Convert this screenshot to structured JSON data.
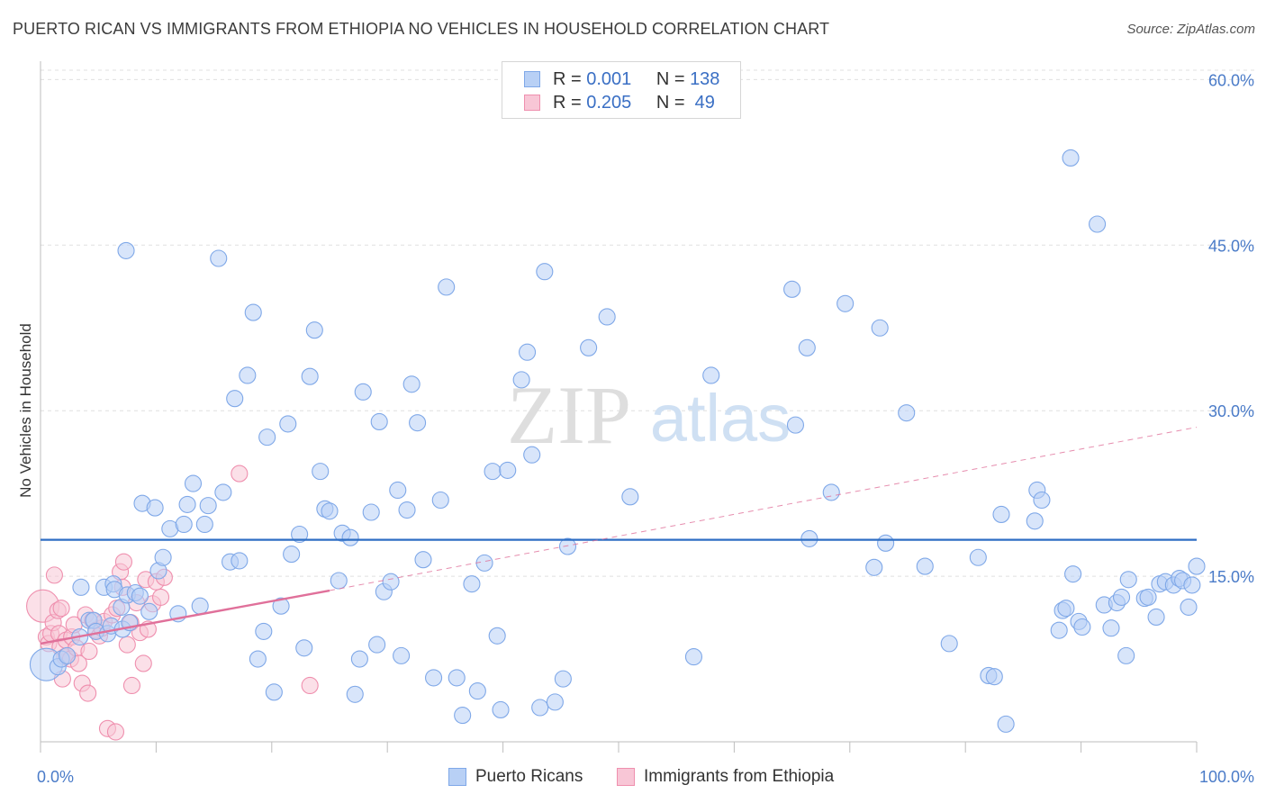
{
  "header": {
    "title": "PUERTO RICAN VS IMMIGRANTS FROM ETHIOPIA NO VEHICLES IN HOUSEHOLD CORRELATION CHART",
    "source": "Source: ZipAtlas.com"
  },
  "watermark": {
    "zip": "ZIP",
    "atlas": "atlas"
  },
  "legend": {
    "rows": [
      {
        "r_label": "R =",
        "r_value": "0.001",
        "n_label": "N =",
        "n_value": "138",
        "color": "#7fa8e8",
        "fill": "#b8d0f5"
      },
      {
        "r_label": "R =",
        "r_value": "0.205",
        "n_label": "N =",
        "n_value": "49",
        "color": "#ef8fae",
        "fill": "#f8c6d6"
      }
    ]
  },
  "bottom_legend": {
    "items": [
      {
        "label": "Puerto Ricans",
        "color": "#7fa8e8",
        "fill": "#b8d0f5"
      },
      {
        "label": "Immigrants from Ethiopia",
        "color": "#ef8fae",
        "fill": "#f8c6d6"
      }
    ]
  },
  "chart_data": {
    "type": "scatter",
    "ylabel": "No Vehicles in Household",
    "xlabel": "",
    "xlim": [
      0,
      100
    ],
    "ylim": [
      0,
      61.5
    ],
    "x_tick_labels": [
      {
        "value": 0,
        "label": "0.0%"
      },
      {
        "value": 100,
        "label": "100.0%"
      }
    ],
    "y_tick_labels": [
      {
        "value": 15,
        "label": "15.0%"
      },
      {
        "value": 30,
        "label": "30.0%"
      },
      {
        "value": 45,
        "label": "45.0%"
      },
      {
        "value": 60,
        "label": "60.0%"
      }
    ],
    "grid": "horizontal dashed",
    "colors": {
      "blue": "#7fa8e8",
      "blue_fill": "#b8d0f5",
      "blue_line": "#2e6ec4",
      "pink": "#ef8fae",
      "pink_fill": "#f8c6d6",
      "pink_line": "#e0709a"
    },
    "series": [
      {
        "name": "Puerto Ricans",
        "trend": {
          "x": [
            0,
            100
          ],
          "y": [
            18.3,
            18.3
          ]
        },
        "points": [
          [
            0.5,
            7
          ],
          [
            1.5,
            6.8
          ],
          [
            1.8,
            7.5
          ],
          [
            2.3,
            7.8
          ],
          [
            3.4,
            9.5
          ],
          [
            3.5,
            14
          ],
          [
            4.2,
            11
          ],
          [
            4.6,
            11
          ],
          [
            4.8,
            10
          ],
          [
            5.5,
            14
          ],
          [
            5.8,
            9.8
          ],
          [
            6.1,
            10.5
          ],
          [
            6.3,
            14.3
          ],
          [
            6.4,
            13.8
          ],
          [
            7.1,
            10.2
          ],
          [
            7.0,
            12.2
          ],
          [
            7.7,
            10.8
          ],
          [
            7.5,
            13.3
          ],
          [
            7.4,
            44.5
          ],
          [
            8.2,
            13.5
          ],
          [
            8.6,
            13.2
          ],
          [
            8.8,
            21.6
          ],
          [
            9.4,
            11.8
          ],
          [
            9.9,
            21.2
          ],
          [
            10.2,
            15.5
          ],
          [
            10.6,
            16.7
          ],
          [
            11.2,
            19.3
          ],
          [
            11.9,
            11.6
          ],
          [
            12.4,
            19.7
          ],
          [
            12.7,
            21.5
          ],
          [
            13.2,
            23.4
          ],
          [
            13.8,
            12.3
          ],
          [
            14.2,
            19.7
          ],
          [
            14.5,
            21.4
          ],
          [
            15.4,
            43.8
          ],
          [
            15.8,
            22.6
          ],
          [
            16.4,
            16.3
          ],
          [
            16.8,
            31.1
          ],
          [
            17.2,
            16.4
          ],
          [
            17.9,
            33.2
          ],
          [
            18.4,
            38.9
          ],
          [
            18.8,
            7.5
          ],
          [
            19.3,
            10
          ],
          [
            19.6,
            27.6
          ],
          [
            20.2,
            4.5
          ],
          [
            20.8,
            12.3
          ],
          [
            21.4,
            28.8
          ],
          [
            21.7,
            17
          ],
          [
            22.4,
            18.8
          ],
          [
            22.8,
            8.5
          ],
          [
            23.3,
            33.1
          ],
          [
            23.7,
            37.3
          ],
          [
            24.2,
            24.5
          ],
          [
            24.6,
            21.1
          ],
          [
            25,
            20.9
          ],
          [
            25.8,
            14.6
          ],
          [
            26.1,
            18.9
          ],
          [
            26.8,
            18.5
          ],
          [
            27.2,
            4.3
          ],
          [
            27.6,
            7.5
          ],
          [
            27.9,
            31.7
          ],
          [
            28.6,
            20.8
          ],
          [
            29.1,
            8.8
          ],
          [
            29.3,
            29
          ],
          [
            29.7,
            13.6
          ],
          [
            30.3,
            14.5
          ],
          [
            30.9,
            22.8
          ],
          [
            31.2,
            7.8
          ],
          [
            31.7,
            21
          ],
          [
            32.1,
            32.4
          ],
          [
            32.6,
            28.9
          ],
          [
            33.1,
            16.5
          ],
          [
            34.0,
            5.8
          ],
          [
            34.6,
            21.9
          ],
          [
            35.1,
            41.2
          ],
          [
            36.0,
            5.8
          ],
          [
            36.5,
            2.4
          ],
          [
            37.3,
            14.3
          ],
          [
            37.8,
            4.6
          ],
          [
            38.4,
            16.2
          ],
          [
            39.1,
            24.5
          ],
          [
            39.5,
            9.6
          ],
          [
            39.8,
            2.9
          ],
          [
            40.4,
            24.6
          ],
          [
            41.6,
            32.8
          ],
          [
            42.1,
            35.3
          ],
          [
            43.2,
            3.1
          ],
          [
            42.5,
            26
          ],
          [
            43.6,
            42.6
          ],
          [
            44.5,
            3.6
          ],
          [
            45.2,
            5.7
          ],
          [
            45.6,
            17.7
          ],
          [
            47.4,
            35.7
          ],
          [
            49.0,
            38.5
          ],
          [
            51.0,
            22.2
          ],
          [
            56.5,
            7.7
          ],
          [
            58,
            33.2
          ],
          [
            65.3,
            28.7
          ],
          [
            65.0,
            41
          ],
          [
            66.5,
            18.4
          ],
          [
            66.3,
            35.7
          ],
          [
            68.4,
            22.6
          ],
          [
            69.6,
            39.7
          ],
          [
            72.1,
            15.8
          ],
          [
            72.6,
            37.5
          ],
          [
            73.1,
            18
          ],
          [
            74.9,
            29.8
          ],
          [
            76.5,
            15.9
          ],
          [
            78.6,
            8.9
          ],
          [
            81.1,
            16.7
          ],
          [
            82.0,
            6
          ],
          [
            82.5,
            5.9
          ],
          [
            83.1,
            20.6
          ],
          [
            83.5,
            1.6
          ],
          [
            86.2,
            22.8
          ],
          [
            86.0,
            20
          ],
          [
            86.6,
            21.9
          ],
          [
            88.1,
            10.1
          ],
          [
            88.4,
            11.9
          ],
          [
            88.7,
            12.1
          ],
          [
            89.1,
            52.9
          ],
          [
            89.3,
            15.2
          ],
          [
            89.8,
            10.9
          ],
          [
            90.1,
            10.4
          ],
          [
            91.4,
            46.9
          ],
          [
            92.0,
            12.4
          ],
          [
            92.6,
            10.3
          ],
          [
            93.1,
            12.6
          ],
          [
            93.5,
            13.1
          ],
          [
            93.9,
            7.8
          ],
          [
            94.1,
            14.7
          ],
          [
            95.5,
            13
          ],
          [
            95.8,
            13.1
          ],
          [
            96.5,
            11.3
          ],
          [
            96.8,
            14.3
          ],
          [
            97.3,
            14.5
          ],
          [
            98.0,
            14.2
          ],
          [
            98.5,
            14.8
          ],
          [
            98.8,
            14.6
          ],
          [
            99.3,
            12.2
          ],
          [
            99.6,
            14.2
          ],
          [
            100,
            15.9
          ]
        ],
        "sizes": {
          "big_points": [
            [
              0.5,
              7,
              18
            ]
          ]
        }
      },
      {
        "name": "Immigrants from Ethiopia",
        "trend": {
          "x": [
            0,
            25
          ],
          "y": [
            8.9,
            13.7
          ]
        },
        "trend_extension": {
          "x": [
            25,
            100
          ],
          "y": [
            13.7,
            28.5
          ]
        },
        "points": [
          [
            0.2,
            12.3
          ],
          [
            0.5,
            9.5
          ],
          [
            0.7,
            8.9
          ],
          [
            0.9,
            9.8
          ],
          [
            1.1,
            10.8
          ],
          [
            1.2,
            15.1
          ],
          [
            1.5,
            11.9
          ],
          [
            1.6,
            9.8
          ],
          [
            1.7,
            8.6
          ],
          [
            1.8,
            12.1
          ],
          [
            1.9,
            5.7
          ],
          [
            2.1,
            7.7
          ],
          [
            2.2,
            9.2
          ],
          [
            2.3,
            7.8
          ],
          [
            2.6,
            7.5
          ],
          [
            2.7,
            9.5
          ],
          [
            2.9,
            10.6
          ],
          [
            3.1,
            8.5
          ],
          [
            3.3,
            7.1
          ],
          [
            3.6,
            5.3
          ],
          [
            3.9,
            11.5
          ],
          [
            4.1,
            4.4
          ],
          [
            4.2,
            8.2
          ],
          [
            4.5,
            11
          ],
          [
            4.8,
            10.1
          ],
          [
            5.1,
            9.6
          ],
          [
            5.3,
            10.3
          ],
          [
            5.5,
            10.9
          ],
          [
            5.8,
            1.2
          ],
          [
            6.2,
            11.5
          ],
          [
            6.5,
            0.9
          ],
          [
            6.6,
            12.1
          ],
          [
            6.9,
            15.4
          ],
          [
            7.1,
            14
          ],
          [
            7.2,
            16.3
          ],
          [
            7.5,
            8.8
          ],
          [
            7.8,
            10.8
          ],
          [
            7.9,
            5.1
          ],
          [
            8.3,
            12.6
          ],
          [
            8.6,
            9.9
          ],
          [
            8.9,
            7.1
          ],
          [
            9.1,
            14.7
          ],
          [
            9.3,
            10.2
          ],
          [
            9.7,
            12.5
          ],
          [
            10.0,
            14.5
          ],
          [
            10.4,
            13.1
          ],
          [
            10.7,
            14.9
          ],
          [
            17.2,
            24.3
          ],
          [
            23.3,
            5.1
          ]
        ],
        "sizes": {
          "big_points": [
            [
              0.2,
              12.3,
              18
            ]
          ]
        }
      }
    ]
  }
}
